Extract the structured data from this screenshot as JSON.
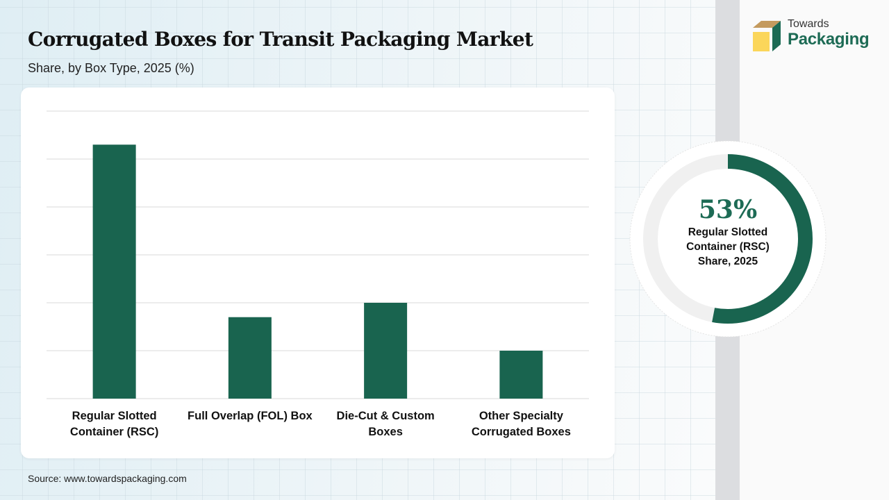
{
  "header": {
    "title": "Corrugated Boxes for Transit Packaging Market",
    "subtitle": "Share, by Box Type, 2025 (%)"
  },
  "brand": {
    "line1": "Towards",
    "line2": "Packaging",
    "colors": {
      "top": "#c49a5e",
      "side": "#1d6b55",
      "front": "#fbd65a"
    }
  },
  "highlight": {
    "value_pct": 53,
    "value_label": "53%",
    "label_lines": [
      "Regular Slotted",
      "Container (RSC)",
      "Share, 2025"
    ],
    "ring_color": "#19644f",
    "track_color": "#f0f0f0"
  },
  "footer": {
    "source": "Source: www.towardspackaging.com"
  },
  "chart_data": {
    "type": "bar",
    "title": "Corrugated Boxes for Transit Packaging Market",
    "subtitle": "Share, by Box Type, 2025 (%)",
    "categories": [
      [
        "Regular Slotted",
        "Container (RSC)"
      ],
      [
        "Full Overlap (FOL) Box"
      ],
      [
        "Die-Cut & Custom",
        "Boxes"
      ],
      [
        "Other Specialty",
        "Corrugated Boxes"
      ]
    ],
    "values": [
      53,
      17,
      20,
      10
    ],
    "xlabel": "",
    "ylabel": "",
    "ylim": [
      0,
      60
    ],
    "ytick_step": 10,
    "ytick_labels_visible": false,
    "grid": true,
    "legend": "none",
    "bar_color": "#19644f",
    "grid_color": "#d9d9d9"
  }
}
